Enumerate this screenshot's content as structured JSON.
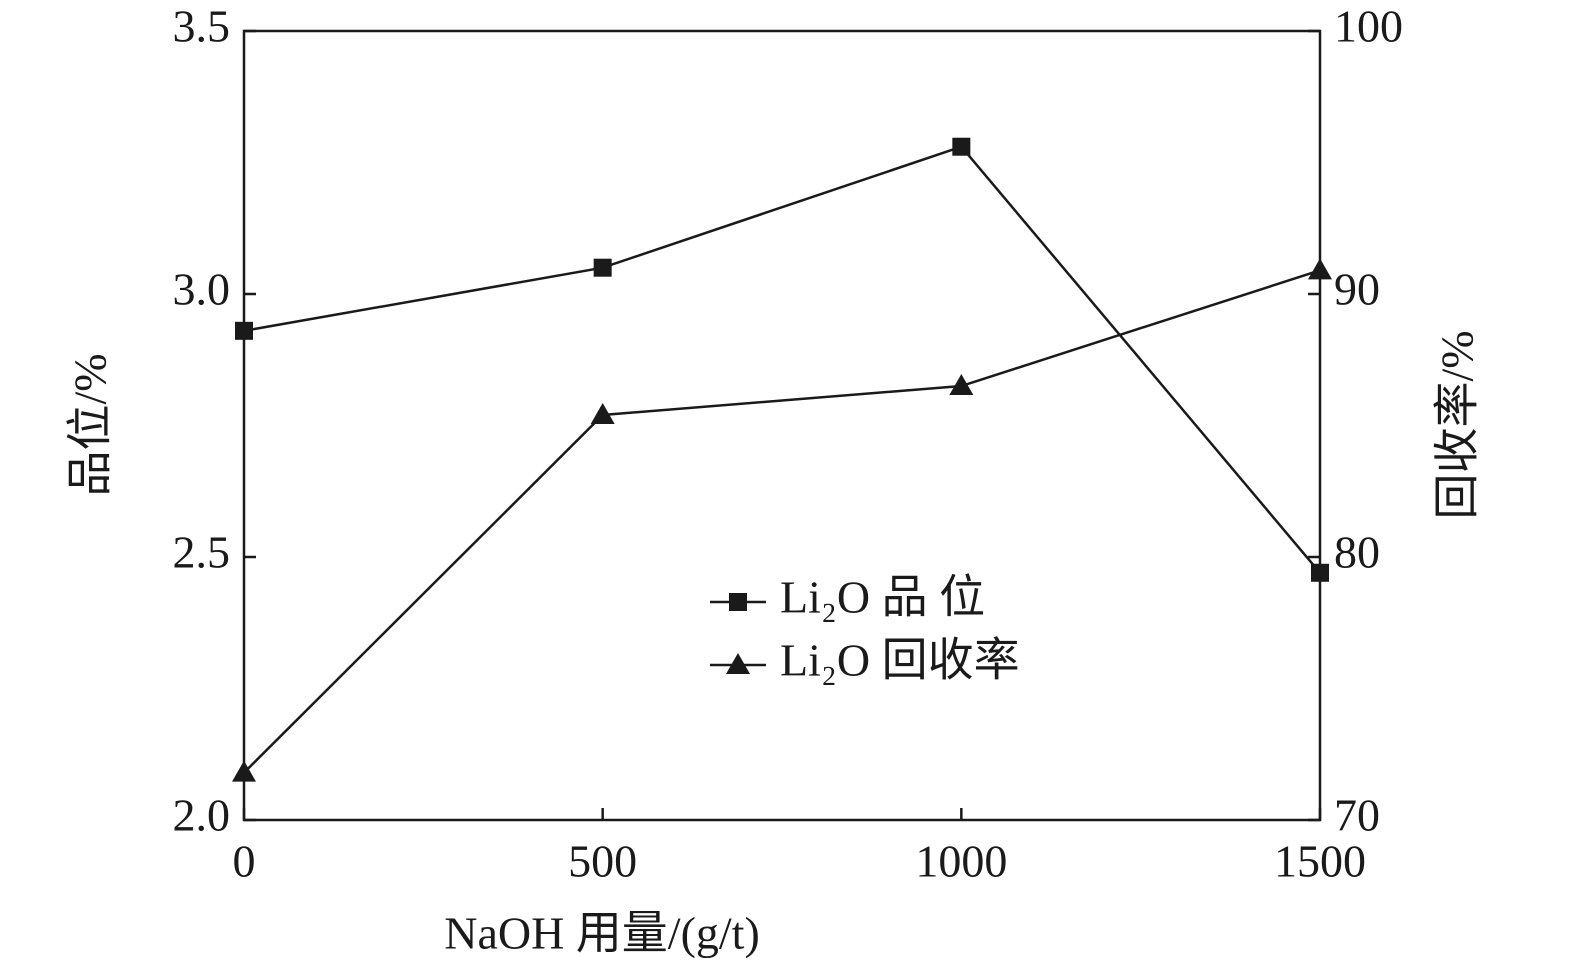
{
  "chart_data": {
    "type": "line",
    "x_label": "NaOH 用量/(g/t)",
    "y_label": "品位/%",
    "y2_label": "回收率/%",
    "x": [
      0,
      500,
      1000,
      1500
    ],
    "xlim": [
      0,
      1500
    ],
    "xticks": [
      0,
      500,
      1000,
      1500
    ],
    "ylim": [
      2,
      3.5
    ],
    "yticks": [
      {
        "value": 2,
        "label": "2.0"
      },
      2.5,
      {
        "value": 3,
        "label": "3.0"
      },
      3.5
    ],
    "y2lim": [
      70,
      100
    ],
    "y2ticks": [
      70,
      80,
      90,
      100
    ],
    "grid": false,
    "legend": "center",
    "series": [
      {
        "name": "Li₂O 品 位",
        "color": "#1a1a1a",
        "marker": "square",
        "values": [
          2.93,
          3.05,
          3.28,
          2.47
        ]
      },
      {
        "name": "Li₂O 回收率",
        "color": "#1a1a1a",
        "marker": "triangle",
        "axis": "y2",
        "values": [
          71.8,
          85.4,
          86.5,
          90.9
        ]
      }
    ]
  }
}
